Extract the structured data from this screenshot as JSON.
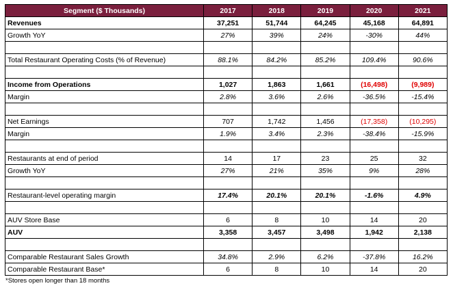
{
  "header": {
    "segment_label": "Segment ($ Thousands)",
    "years": [
      "2017",
      "2018",
      "2019",
      "2020",
      "2021"
    ]
  },
  "rows": [
    {
      "type": "data",
      "style": "bold",
      "label": "Revenues",
      "values": [
        "37,251",
        "51,744",
        "64,245",
        "45,168",
        "64,891"
      ],
      "negative": [
        false,
        false,
        false,
        false,
        false
      ]
    },
    {
      "type": "data",
      "style": "italic",
      "label": "Growth YoY",
      "values": [
        "27%",
        "39%",
        "24%",
        "-30%",
        "44%"
      ],
      "negative": [
        false,
        false,
        false,
        false,
        false
      ]
    },
    {
      "type": "spacer"
    },
    {
      "type": "data",
      "style": "italic",
      "label": "Total Restaurant Operating Costs (% of Revenue)",
      "values": [
        "88.1%",
        "84.2%",
        "85.2%",
        "109.4%",
        "90.6%"
      ],
      "negative": [
        false,
        false,
        false,
        false,
        false
      ]
    },
    {
      "type": "spacer"
    },
    {
      "type": "data",
      "style": "bold",
      "label": "Income from Operations",
      "values": [
        "1,027",
        "1,863",
        "1,661",
        "(16,498)",
        "(9,989)"
      ],
      "negative": [
        false,
        false,
        false,
        true,
        true
      ]
    },
    {
      "type": "data",
      "style": "italic",
      "label": "Margin",
      "values": [
        "2.8%",
        "3.6%",
        "2.6%",
        "-36.5%",
        "-15.4%"
      ],
      "negative": [
        false,
        false,
        false,
        false,
        false
      ]
    },
    {
      "type": "spacer"
    },
    {
      "type": "data",
      "style": "plain",
      "label": "Net Earnings",
      "values": [
        "707",
        "1,742",
        "1,456",
        "(17,358)",
        "(10,295)"
      ],
      "negative": [
        false,
        false,
        false,
        true,
        true
      ]
    },
    {
      "type": "data",
      "style": "italic",
      "label": "Margin",
      "values": [
        "1.9%",
        "3.4%",
        "2.3%",
        "-38.4%",
        "-15.9%"
      ],
      "negative": [
        false,
        false,
        false,
        false,
        false
      ]
    },
    {
      "type": "spacer"
    },
    {
      "type": "data",
      "style": "plain",
      "label": "Restaurants at end of period",
      "values": [
        "14",
        "17",
        "23",
        "25",
        "32"
      ],
      "negative": [
        false,
        false,
        false,
        false,
        false
      ]
    },
    {
      "type": "data",
      "style": "italic",
      "label": "Growth YoY",
      "values": [
        "27%",
        "21%",
        "35%",
        "9%",
        "28%"
      ],
      "negative": [
        false,
        false,
        false,
        false,
        false
      ]
    },
    {
      "type": "spacer"
    },
    {
      "type": "data",
      "style": "boldital",
      "label": "Restaurant-level operating margin",
      "values": [
        "17.4%",
        "20.1%",
        "20.1%",
        "-1.6%",
        "4.9%"
      ],
      "negative": [
        false,
        false,
        false,
        false,
        false
      ]
    },
    {
      "type": "spacer"
    },
    {
      "type": "data",
      "style": "plain",
      "label": "AUV Store Base",
      "values": [
        "6",
        "8",
        "10",
        "14",
        "20"
      ],
      "negative": [
        false,
        false,
        false,
        false,
        false
      ]
    },
    {
      "type": "data",
      "style": "bold",
      "label": "AUV",
      "values": [
        "3,358",
        "3,457",
        "3,498",
        "1,942",
        "2,138"
      ],
      "negative": [
        false,
        false,
        false,
        false,
        false
      ]
    },
    {
      "type": "spacer"
    },
    {
      "type": "data",
      "style": "italic",
      "label": "Comparable Restaurant Sales Growth",
      "values": [
        "34.8%",
        "2.9%",
        "6.2%",
        "-37.8%",
        "16.2%"
      ],
      "negative": [
        false,
        false,
        false,
        false,
        false
      ]
    },
    {
      "type": "data",
      "style": "plain",
      "label": "Comparable Restaurant Base*",
      "values": [
        "6",
        "8",
        "10",
        "14",
        "20"
      ],
      "negative": [
        false,
        false,
        false,
        false,
        false
      ]
    }
  ],
  "footnote": "*Stores open longer than 18 months",
  "colors": {
    "header_bg": "#7a1f3d",
    "header_text": "#ffffff",
    "negative": "#e00000"
  }
}
